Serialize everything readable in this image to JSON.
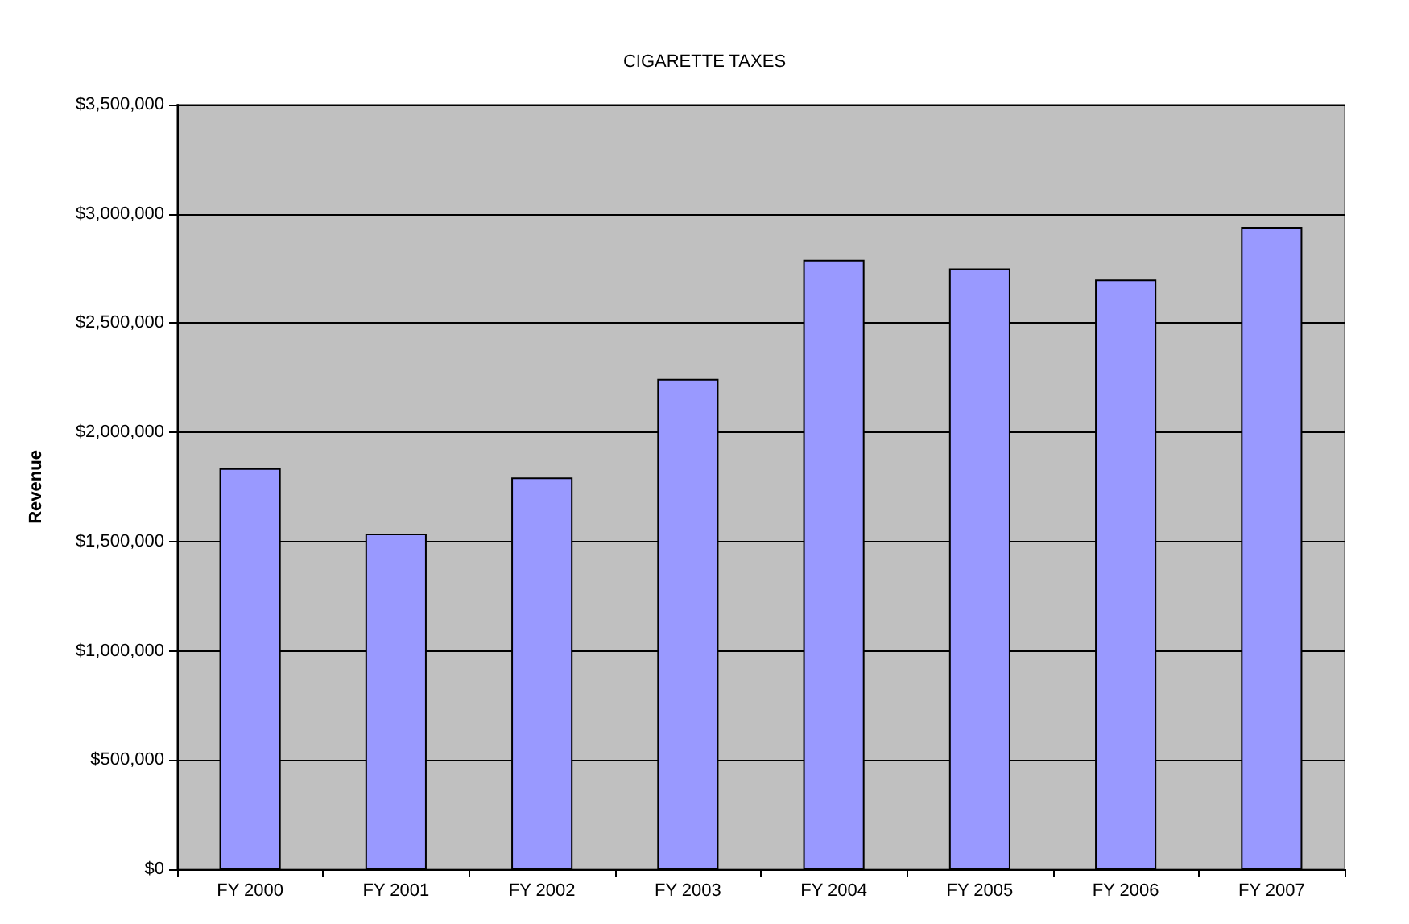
{
  "chart_data": {
    "type": "bar",
    "title": "CIGARETTE TAXES",
    "ylabel": "Revenue",
    "categories": [
      "FY 2000",
      "FY 2001",
      "FY 2002",
      "FY 2003",
      "FY 2004",
      "FY 2005",
      "FY 2006",
      "FY 2007"
    ],
    "values": [
      1836000,
      1536000,
      1793000,
      2245000,
      2790000,
      2750000,
      2700000,
      2940000
    ],
    "color": "#9999ff",
    "ylim": [
      0,
      3500000
    ],
    "yticks": [
      {
        "value": 0,
        "label": "$0"
      },
      {
        "value": 500000,
        "label": "$500,000"
      },
      {
        "value": 1000000,
        "label": "$1,000,000"
      },
      {
        "value": 1500000,
        "label": "$1,500,000"
      },
      {
        "value": 2000000,
        "label": "$2,000,000"
      },
      {
        "value": 2500000,
        "label": "$2,500,000"
      },
      {
        "value": 3000000,
        "label": "$3,000,000"
      },
      {
        "value": 3500000,
        "label": "$3,500,000"
      }
    ],
    "grid": "y"
  }
}
